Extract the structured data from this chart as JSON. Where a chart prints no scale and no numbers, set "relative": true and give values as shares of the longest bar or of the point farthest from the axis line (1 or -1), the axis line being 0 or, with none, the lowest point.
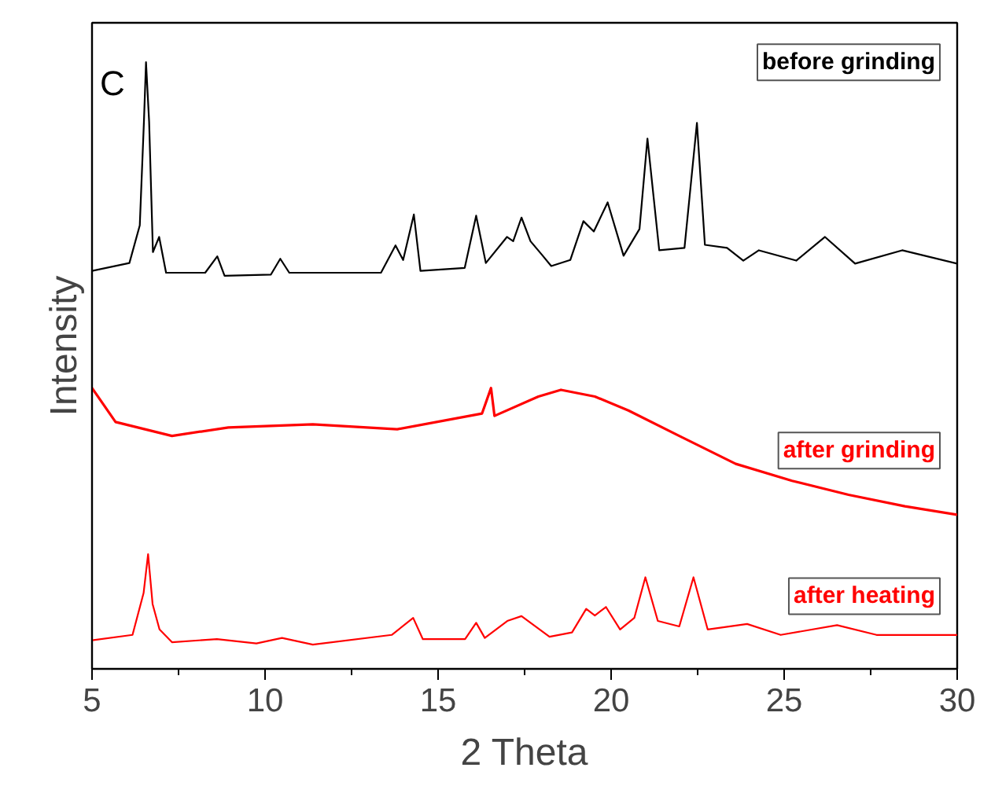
{
  "chart_data": {
    "type": "line",
    "relative": true,
    "xlabel": "2 Theta",
    "ylabel": "Intensity",
    "annotations": [
      "C"
    ],
    "xlim": [
      5,
      30
    ],
    "xticks": [
      5,
      10,
      15,
      20,
      25,
      30
    ],
    "tick_labels": "x",
    "grid": false,
    "legend": false,
    "marker": "none",
    "line_style": "solid",
    "series": [
      {
        "name": "before grinding",
        "color": "#000000",
        "x": [
          5.0,
          6.08,
          6.38,
          6.5,
          6.56,
          6.65,
          6.76,
          6.94,
          7.14,
          8.27,
          8.62,
          8.83,
          10.17,
          10.44,
          10.7,
          13.35,
          13.77,
          13.99,
          14.3,
          14.49,
          15.77,
          16.1,
          16.38,
          16.99,
          17.17,
          17.41,
          17.67,
          18.01,
          18.27,
          18.82,
          19.2,
          19.5,
          19.9,
          20.36,
          20.82,
          21.05,
          21.39,
          22.12,
          22.48,
          22.71,
          23.35,
          23.82,
          24.27,
          25.35,
          26.18,
          27.05,
          28.41,
          30.0
        ],
        "values": [
          0.656,
          0.669,
          0.731,
          0.902,
          1.0,
          0.902,
          0.687,
          0.712,
          0.653,
          0.653,
          0.68,
          0.648,
          0.65,
          0.676,
          0.653,
          0.653,
          0.698,
          0.674,
          0.749,
          0.656,
          0.661,
          0.747,
          0.669,
          0.712,
          0.705,
          0.744,
          0.705,
          0.682,
          0.664,
          0.674,
          0.738,
          0.721,
          0.769,
          0.681,
          0.725,
          0.874,
          0.69,
          0.694,
          0.9,
          0.699,
          0.694,
          0.673,
          0.69,
          0.673,
          0.712,
          0.668,
          0.69,
          0.668
        ]
      },
      {
        "name": "after grinding",
        "color": "#ff0000",
        "x": [
          5.0,
          5.68,
          7.31,
          8.94,
          11.38,
          13.82,
          16.27,
          16.53,
          16.63,
          17.9,
          18.55,
          19.53,
          20.5,
          21.97,
          23.6,
          25.23,
          26.86,
          28.49,
          30.0
        ],
        "values": [
          0.463,
          0.407,
          0.384,
          0.398,
          0.403,
          0.395,
          0.421,
          0.463,
          0.417,
          0.449,
          0.46,
          0.449,
          0.426,
          0.384,
          0.338,
          0.31,
          0.287,
          0.268,
          0.254
        ]
      },
      {
        "name": "after heating",
        "color": "#ff0000",
        "x": [
          5.0,
          6.17,
          6.49,
          6.62,
          6.75,
          6.95,
          7.31,
          8.61,
          9.75,
          10.49,
          11.38,
          13.66,
          14.28,
          14.56,
          15.78,
          16.1,
          16.35,
          17.0,
          17.41,
          18.22,
          18.87,
          19.28,
          19.53,
          19.85,
          20.26,
          20.67,
          20.99,
          21.35,
          21.97,
          22.38,
          22.79,
          23.93,
          24.9,
          26.53,
          27.67,
          30.0
        ],
        "values": [
          0.047,
          0.056,
          0.125,
          0.189,
          0.107,
          0.065,
          0.044,
          0.049,
          0.042,
          0.051,
          0.04,
          0.056,
          0.084,
          0.049,
          0.049,
          0.076,
          0.051,
          0.079,
          0.087,
          0.053,
          0.06,
          0.099,
          0.088,
          0.102,
          0.065,
          0.084,
          0.151,
          0.079,
          0.07,
          0.151,
          0.065,
          0.074,
          0.056,
          0.072,
          0.056,
          0.056
        ]
      }
    ]
  }
}
